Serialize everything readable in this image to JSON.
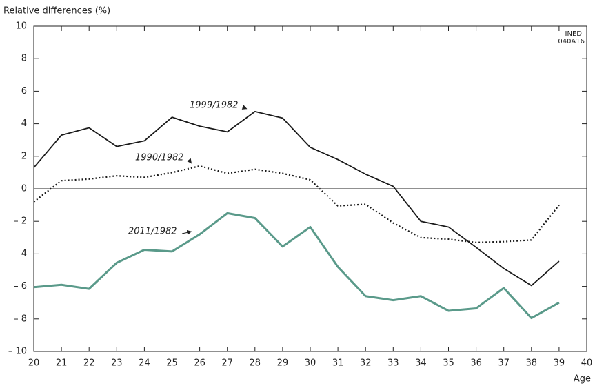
{
  "chart_data": {
    "type": "line",
    "ylabel": "Relative differences (%)",
    "xlabel": "Age",
    "source_note": [
      "INED",
      "040A16"
    ],
    "x": [
      20,
      21,
      22,
      23,
      24,
      25,
      26,
      27,
      28,
      29,
      30,
      31,
      32,
      33,
      34,
      35,
      36,
      37,
      38,
      39
    ],
    "series": [
      {
        "name": "1999/1982",
        "color": "#1a1a1a",
        "style": "solid",
        "values": [
          1.3,
          3.3,
          3.75,
          2.6,
          2.95,
          4.4,
          3.85,
          3.5,
          4.75,
          4.35,
          2.55,
          1.8,
          0.9,
          0.15,
          -2.0,
          -2.35,
          -3.6,
          -4.9,
          -5.95,
          -4.45
        ]
      },
      {
        "name": "1990/1982",
        "color": "#1a1a1a",
        "style": "dotted",
        "values": [
          -0.8,
          0.5,
          0.6,
          0.8,
          0.7,
          1.0,
          1.4,
          0.95,
          1.2,
          0.95,
          0.55,
          -1.05,
          -0.95,
          -2.1,
          -3.0,
          -3.1,
          -3.3,
          -3.25,
          -3.15,
          -1.0
        ]
      },
      {
        "name": "2011/1982",
        "color": "#5a9a8a",
        "style": "thick",
        "values": [
          -6.05,
          -5.9,
          -6.15,
          -4.55,
          -3.75,
          -3.85,
          -2.8,
          -1.5,
          -1.8,
          -3.55,
          -2.35,
          -4.8,
          -6.6,
          -6.85,
          -6.6,
          -7.5,
          -7.35,
          -6.1,
          -7.95,
          -7.0
        ]
      }
    ],
    "xlim": [
      20,
      40
    ],
    "xticks": [
      20,
      21,
      22,
      23,
      24,
      25,
      26,
      27,
      28,
      29,
      30,
      31,
      32,
      33,
      34,
      35,
      36,
      37,
      38,
      39,
      40
    ],
    "ylim": [
      -10,
      10
    ],
    "yticks": [
      {
        "value": -10,
        "label": "– 10"
      },
      {
        "value": -8,
        "label": "– 8"
      },
      {
        "value": -6,
        "label": "– 6"
      },
      {
        "value": -4,
        "label": "– 4"
      },
      {
        "value": -2,
        "label": "– 2"
      },
      0,
      2,
      4,
      6,
      8,
      10
    ],
    "zero_line": true,
    "grid": false
  }
}
